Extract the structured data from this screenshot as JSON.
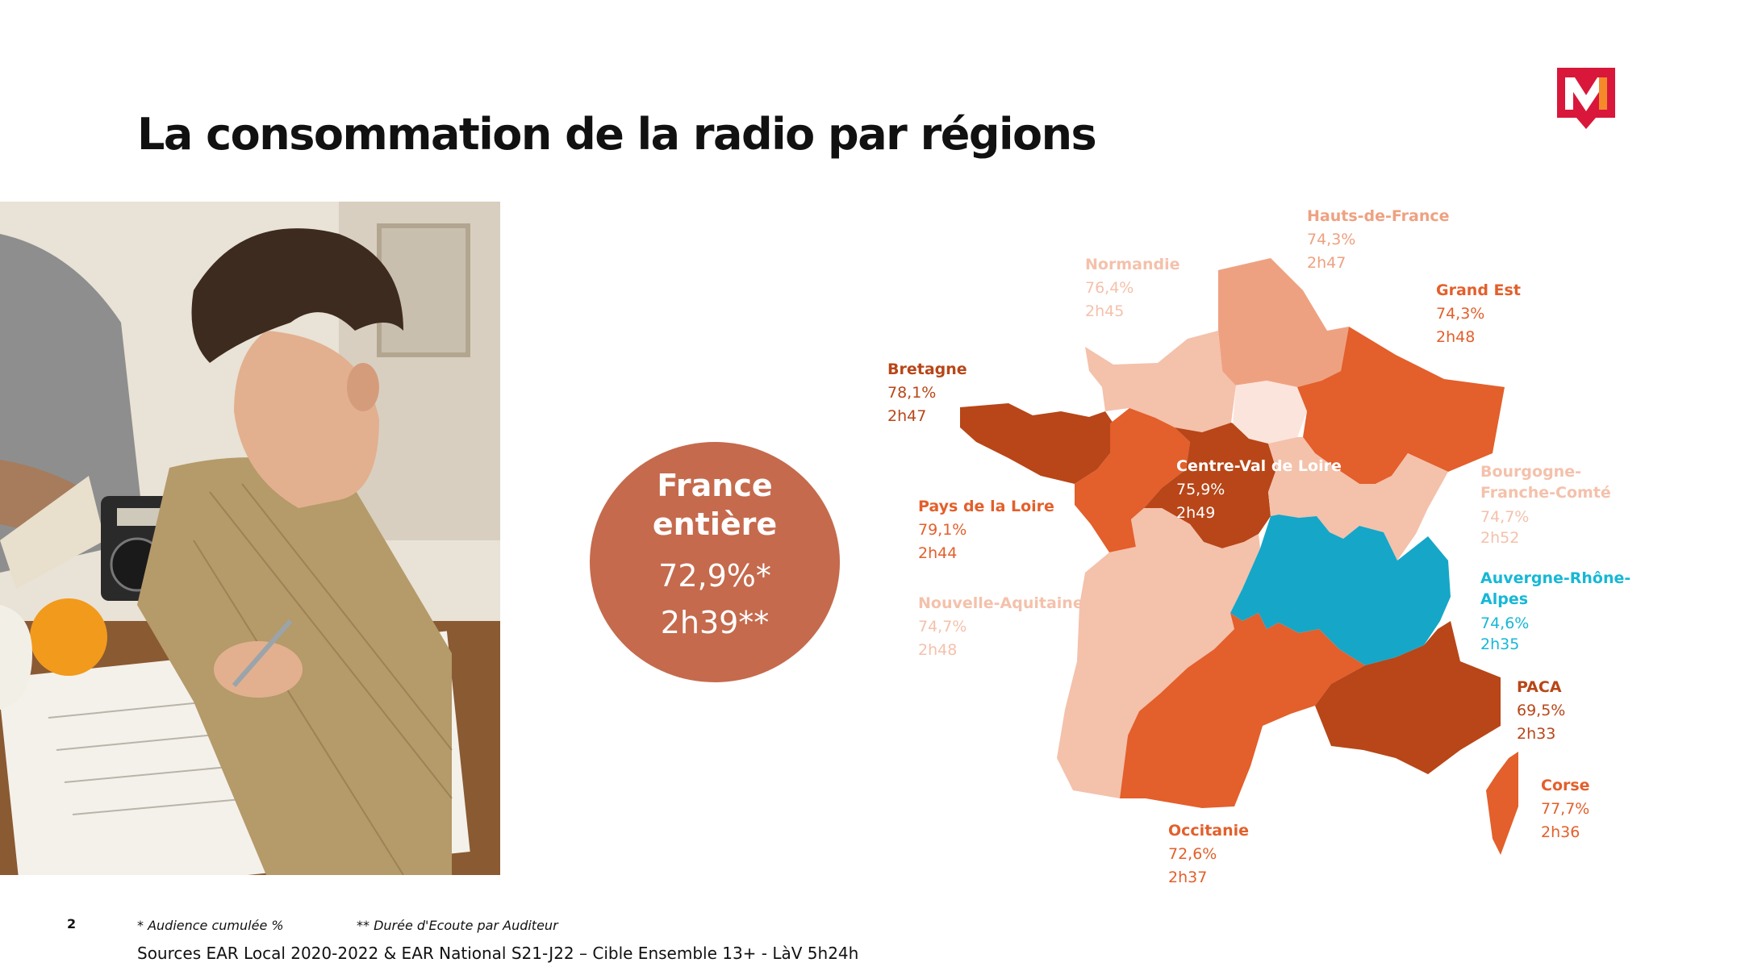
{
  "title": "La consommation de la radio par régions",
  "colors": {
    "accent": "#c56a4d",
    "orange": "#e35f2b",
    "dark_orange": "#b84618",
    "salmon": "#eea181",
    "pale": "#f4c1ab",
    "very_pale": "#fbe4db",
    "blue": "#16a6c8",
    "logo_red": "#d9173a"
  },
  "summary": {
    "title": "France entière",
    "percent": "72,9%*",
    "duration": "2h39**"
  },
  "regions": {
    "hauts_de_france": {
      "name": "Hauts-de-France",
      "percent": "74,3%",
      "duration": "2h47"
    },
    "normandie": {
      "name": "Normandie",
      "percent": "76,4%",
      "duration": "2h45"
    },
    "grand_est": {
      "name": "Grand Est",
      "percent": "74,3%",
      "duration": "2h48"
    },
    "bretagne": {
      "name": "Bretagne",
      "percent": "78,1%",
      "duration": "2h47"
    },
    "centre_val_de_loire": {
      "name": "Centre-Val de Loire",
      "percent": "75,9%",
      "duration": "2h49"
    },
    "bourgogne": {
      "name_line1": "Bourgogne-",
      "name_line2": "Franche-Comté",
      "percent": "74,7%",
      "duration": "2h52"
    },
    "pays_de_la_loire": {
      "name": "Pays de la Loire",
      "percent": "79,1%",
      "duration": "2h44"
    },
    "nouvelle_aquitaine": {
      "name": "Nouvelle-Aquitaine",
      "percent": "74,7%",
      "duration": "2h48"
    },
    "auvergne": {
      "name_line1": "Auvergne-Rhône-",
      "name_line2": "Alpes",
      "percent": "74,6%",
      "duration": "2h35"
    },
    "paca": {
      "name": "PACA",
      "percent": "69,5%",
      "duration": "2h33"
    },
    "corse": {
      "name": "Corse",
      "percent": "77,7%",
      "duration": "2h36"
    },
    "occitanie": {
      "name": "Occitanie",
      "percent": "72,6%",
      "duration": "2h37"
    }
  },
  "footer": {
    "page_number": "2",
    "note1": "* Audience cumulée %",
    "note2": "** Durée d'Ecoute par Auditeur",
    "sources": "Sources EAR Local 2020-2022 & EAR National S21-J22 – Cible Ensemble 13+ - LàV 5h24h"
  }
}
